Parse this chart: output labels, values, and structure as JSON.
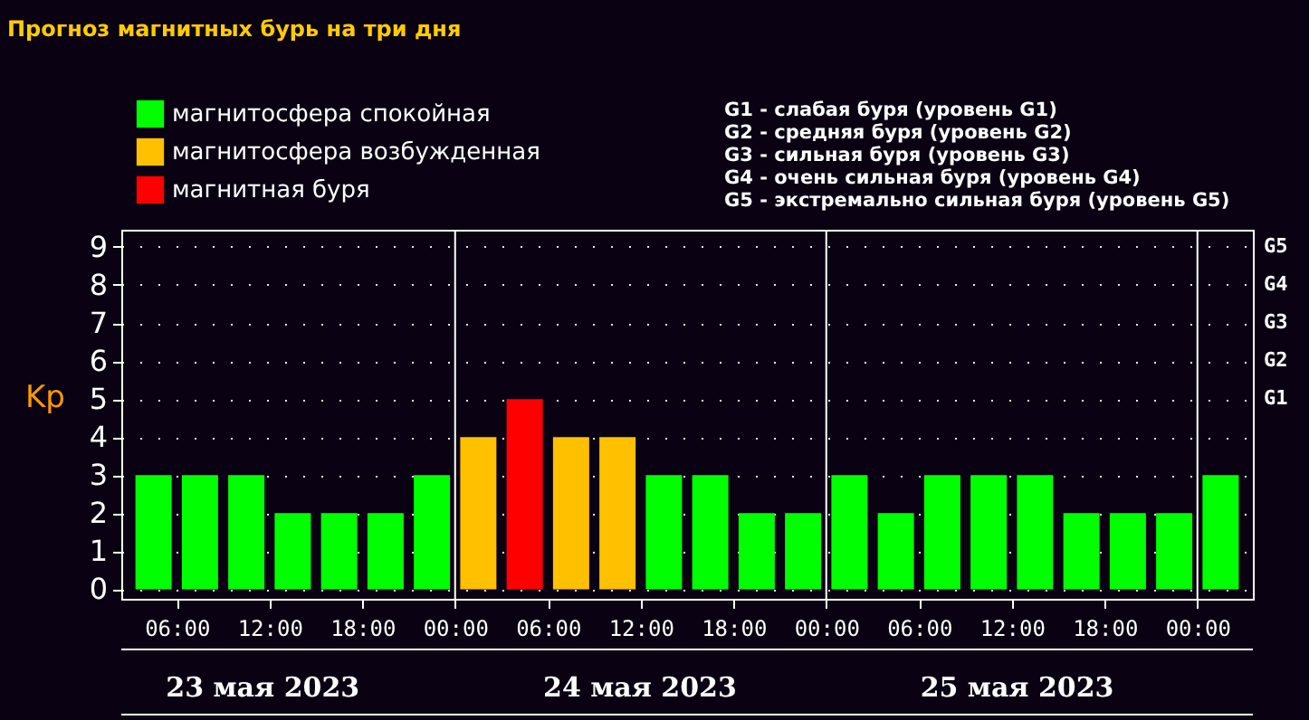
{
  "chart_data": {
    "type": "bar",
    "title": "Прогноз магнитных бурь на три дня",
    "ylabel": "Kp",
    "x": [
      "2023-05-23T04:30",
      "2023-05-23T07:30",
      "2023-05-23T10:30",
      "2023-05-23T13:30",
      "2023-05-23T16:30",
      "2023-05-23T19:30",
      "2023-05-23T22:30",
      "2023-05-24T01:30",
      "2023-05-24T04:30",
      "2023-05-24T07:30",
      "2023-05-24T10:30",
      "2023-05-24T13:30",
      "2023-05-24T16:30",
      "2023-05-24T19:30",
      "2023-05-24T22:30",
      "2023-05-25T01:30",
      "2023-05-25T04:30",
      "2023-05-25T07:30",
      "2023-05-25T10:30",
      "2023-05-25T13:30",
      "2023-05-25T16:30",
      "2023-05-25T19:30",
      "2023-05-25T22:30",
      "2023-05-26T01:30"
    ],
    "series": [
      {
        "name": "магнитосфера спокойная",
        "color": "#00ff00",
        "values": [
          3,
          3,
          3,
          2,
          2,
          2,
          3,
          null,
          null,
          null,
          null,
          3,
          3,
          2,
          2,
          3,
          2,
          3,
          3,
          3,
          2,
          2,
          2,
          3
        ]
      },
      {
        "name": "магнитосфера возбужденная",
        "color": "#ffc000",
        "values": [
          null,
          null,
          null,
          null,
          null,
          null,
          null,
          4,
          null,
          4,
          4,
          null,
          null,
          null,
          null,
          null,
          null,
          null,
          null,
          null,
          null,
          null,
          null,
          null
        ]
      },
      {
        "name": "магнитная буря",
        "color": "#ff0000",
        "values": [
          null,
          null,
          null,
          null,
          null,
          null,
          null,
          null,
          5,
          null,
          null,
          null,
          null,
          null,
          null,
          null,
          null,
          null,
          null,
          null,
          null,
          null,
          null,
          null
        ]
      }
    ],
    "xlim": [
      "2023-05-23T03:00",
      "2023-05-26T03:00"
    ],
    "xticks": [
      {
        "value": "2023-05-23T06:00",
        "label": "06:00"
      },
      {
        "value": "2023-05-23T12:00",
        "label": "12:00"
      },
      {
        "value": "2023-05-23T18:00",
        "label": "18:00"
      },
      {
        "value": "2023-05-24T00:00",
        "label": "00:00"
      },
      {
        "value": "2023-05-24T06:00",
        "label": "06:00"
      },
      {
        "value": "2023-05-24T12:00",
        "label": "12:00"
      },
      {
        "value": "2023-05-24T18:00",
        "label": "18:00"
      },
      {
        "value": "2023-05-25T00:00",
        "label": "00:00"
      },
      {
        "value": "2023-05-25T06:00",
        "label": "06:00"
      },
      {
        "value": "2023-05-25T12:00",
        "label": "12:00"
      },
      {
        "value": "2023-05-25T18:00",
        "label": "18:00"
      },
      {
        "value": "2023-05-26T00:00",
        "label": "00:00"
      }
    ],
    "ylim": [
      -0.25,
      9.45
    ],
    "yticks": [
      0,
      1,
      2,
      3,
      4,
      5,
      6,
      7,
      8,
      9
    ],
    "ref_lines": [
      {
        "axis": "x",
        "value": "2023-05-24T00:00",
        "color": "#ffffff"
      },
      {
        "axis": "x",
        "value": "2023-05-25T00:00",
        "color": "#ffffff"
      },
      {
        "axis": "x",
        "value": "2023-05-26T00:00",
        "color": "#ffffff"
      }
    ],
    "grid": "y",
    "legend": "top left",
    "annotations": [
      "G1 - слабая буря (уровень G1)",
      "G2 - средняя буря (уровень G2)",
      "G3 - сильная буря (уровень G3)",
      "G4 - очень сильная буря (уровень G4)",
      "G5 - экстремально сильная буря (уровень G5)",
      "23 мая 2023",
      "24 мая 2023",
      "25 мая 2023",
      "G1",
      "G2",
      "G3",
      "G4",
      "G5"
    ]
  }
}
